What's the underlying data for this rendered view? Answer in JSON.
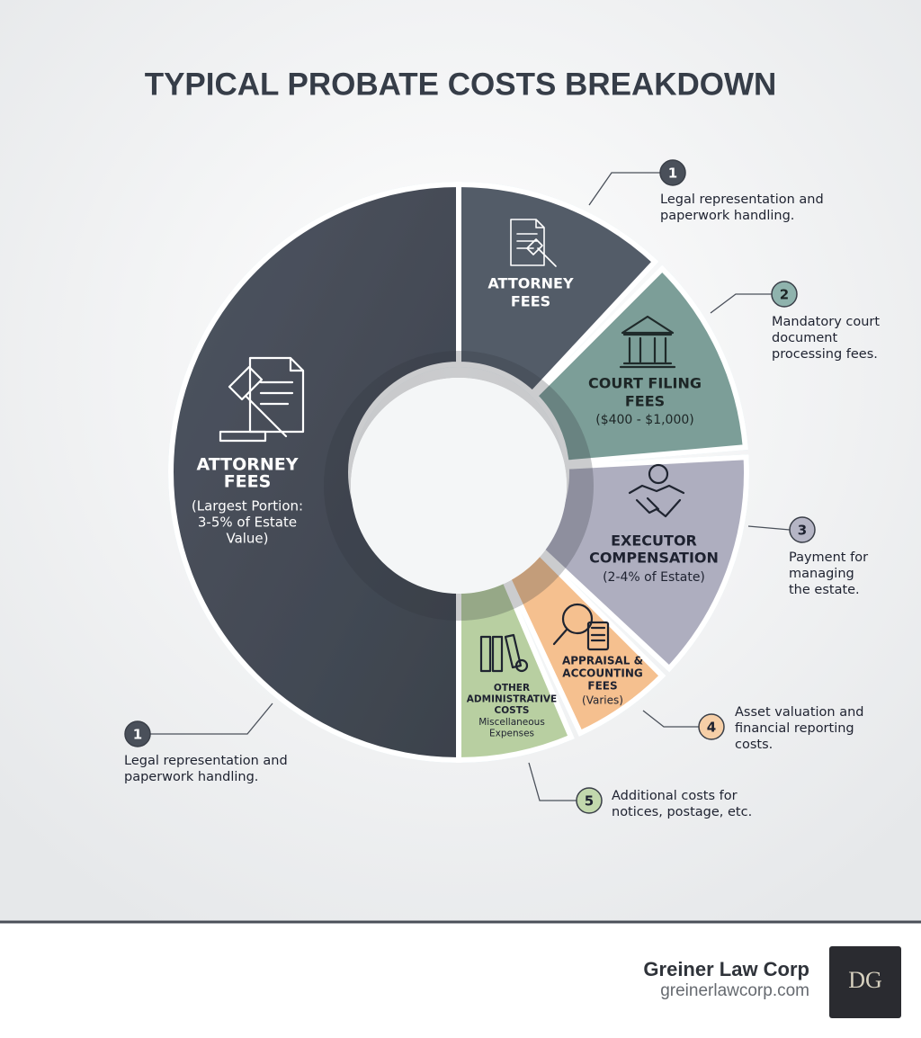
{
  "title": "TYPICAL PROBATE COSTS BREAKDOWN",
  "segments": [
    {
      "label": [
        "ATTORNEY",
        "FEES"
      ],
      "detail": [
        "(Largest Portion:",
        "3-5% of Estate",
        "Value)"
      ]
    },
    {
      "label": [
        "ATTORNEY",
        "FEES"
      ]
    },
    {
      "label": [
        "COURT FILING",
        "FEES"
      ],
      "detail": [
        "($400 - $1,000)"
      ]
    },
    {
      "label": [
        "EXECUTOR",
        "COMPENSATION"
      ],
      "detail": [
        "(2-4% of Estate)"
      ]
    },
    {
      "label": [
        "APPRAISAL &",
        "ACCOUNTING",
        "FEES"
      ],
      "detail": [
        "(Varies)"
      ]
    },
    {
      "label": [
        "OTHER",
        "ADMINISTRATIVE",
        "COSTS"
      ],
      "detail": [
        "Miscellaneous",
        "Expenses"
      ]
    }
  ],
  "callouts": [
    {
      "number": "1",
      "text": [
        "Legal representation and",
        "paperwork handling."
      ]
    },
    {
      "number": "2",
      "text": [
        "Mandatory court",
        "document",
        "processing fees."
      ]
    },
    {
      "number": "3",
      "text": [
        "Payment for",
        "managing",
        "the estate."
      ]
    },
    {
      "number": "4",
      "text": [
        "Asset valuation and",
        "financial reporting",
        "costs."
      ]
    },
    {
      "number": "5",
      "text": [
        "Additional costs for",
        "notices, postage, etc."
      ]
    },
    {
      "number": "1",
      "text": [
        "Legal representation and",
        "paperwork handling."
      ]
    }
  ],
  "footer": {
    "name": "Greiner Law Corp",
    "url": "greinerlawcorp.com",
    "logo": "DG"
  }
}
